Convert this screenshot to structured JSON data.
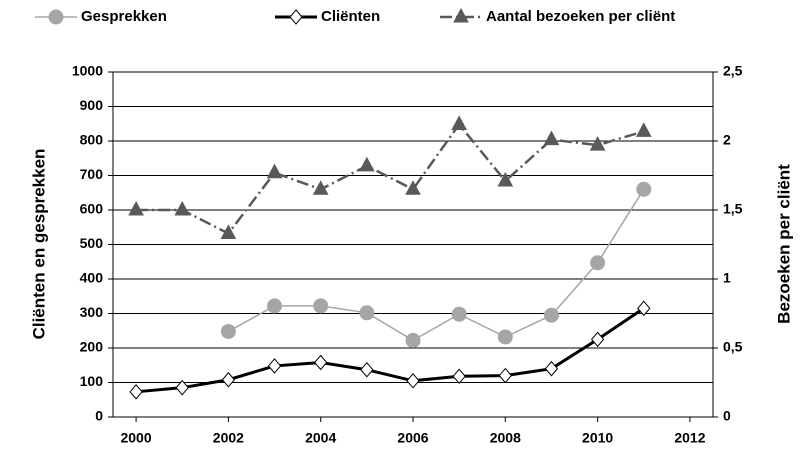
{
  "chart_data": {
    "type": "line",
    "x": [
      2000,
      2001,
      2002,
      2003,
      2004,
      2005,
      2006,
      2007,
      2008,
      2009,
      2010,
      2011
    ],
    "series": [
      {
        "name": "Gesprekken",
        "color": "#a6a6a6",
        "marker": "circle",
        "values": [
          null,
          null,
          248,
          322,
          322,
          302,
          222,
          298,
          232,
          295,
          447,
          660
        ]
      },
      {
        "name": "Cliënten",
        "color": "#000000",
        "marker": "diamond",
        "values": [
          73,
          85,
          108,
          148,
          158,
          137,
          105,
          118,
          120,
          140,
          225,
          315
        ]
      },
      {
        "name": "Aantal bezoeken per cliënt",
        "color": "#595959",
        "marker": "triangle",
        "axis": "y2",
        "values": [
          1.5,
          1.5,
          1.33,
          1.77,
          1.65,
          1.82,
          1.65,
          2.12,
          1.71,
          2.01,
          1.97,
          2.07
        ]
      }
    ],
    "ylabel": "Cliënten en gesprekken",
    "y2label": "Bezoeken per cliënt",
    "xlim": [
      1999.5,
      2012.5
    ],
    "xticks": [
      2000,
      2002,
      2004,
      2006,
      2008,
      2010,
      2012
    ],
    "ylim": [
      0,
      1000
    ],
    "yticks": [
      0,
      100,
      200,
      300,
      400,
      500,
      600,
      700,
      800,
      900,
      1000
    ],
    "y2lim": [
      0,
      2.5
    ],
    "y2ticks": [
      0,
      {
        "value": 0.5,
        "label": "0,5"
      },
      1,
      {
        "value": 1.5,
        "label": "1,5"
      },
      2,
      {
        "value": 2.5,
        "label": "2,5"
      }
    ],
    "grid": true,
    "legend": "top"
  }
}
